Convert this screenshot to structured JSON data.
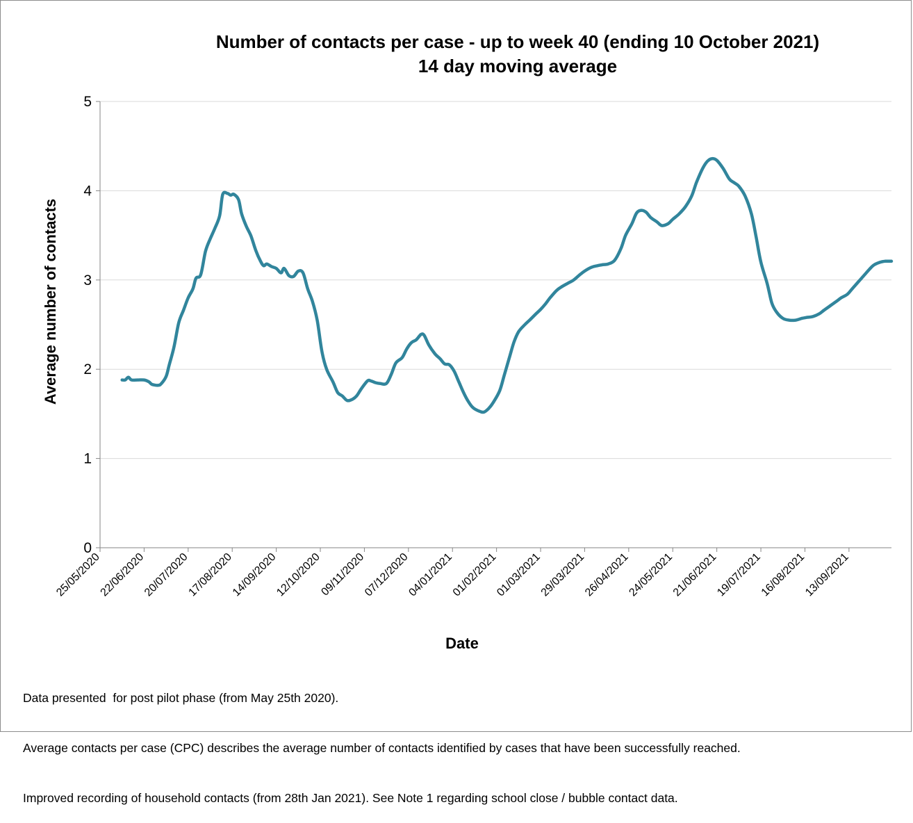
{
  "chart_data": {
    "type": "line",
    "title": "Number of contacts per case - up to week 40 (ending 10 October 2021)",
    "subtitle": "14 day moving average",
    "xlabel": "Date",
    "ylabel": "Average number of contacts",
    "x_range": [
      "2020-05-25",
      "2021-10-10"
    ],
    "ylim": [
      0,
      5
    ],
    "y_ticks": [
      0,
      1,
      2,
      3,
      4,
      5
    ],
    "x_tick_labels": [
      "25/05/2020",
      "22/06/2020",
      "20/07/2020",
      "17/08/2020",
      "14/09/2020",
      "12/10/2020",
      "09/11/2020",
      "07/12/2020",
      "04/01/2021",
      "01/02/2021",
      "01/03/2021",
      "29/03/2021",
      "26/04/2021",
      "24/05/2021",
      "21/06/2021",
      "19/07/2021",
      "16/08/2021",
      "13/09/2021"
    ],
    "grid": "horizontal",
    "line_color": "#31859c",
    "points": [
      {
        "x": "2020-06-08",
        "y": 1.88
      },
      {
        "x": "2020-06-10",
        "y": 1.88
      },
      {
        "x": "2020-06-12",
        "y": 1.91
      },
      {
        "x": "2020-06-14",
        "y": 1.88
      },
      {
        "x": "2020-06-18",
        "y": 1.88
      },
      {
        "x": "2020-06-22",
        "y": 1.88
      },
      {
        "x": "2020-06-25",
        "y": 1.86
      },
      {
        "x": "2020-06-27",
        "y": 1.83
      },
      {
        "x": "2020-07-01",
        "y": 1.82
      },
      {
        "x": "2020-07-03",
        "y": 1.84
      },
      {
        "x": "2020-07-06",
        "y": 1.92
      },
      {
        "x": "2020-07-08",
        "y": 2.05
      },
      {
        "x": "2020-07-11",
        "y": 2.25
      },
      {
        "x": "2020-07-14",
        "y": 2.52
      },
      {
        "x": "2020-07-17",
        "y": 2.66
      },
      {
        "x": "2020-07-20",
        "y": 2.8
      },
      {
        "x": "2020-07-23",
        "y": 2.9
      },
      {
        "x": "2020-07-25",
        "y": 3.02
      },
      {
        "x": "2020-07-28",
        "y": 3.06
      },
      {
        "x": "2020-07-31",
        "y": 3.32
      },
      {
        "x": "2020-08-03",
        "y": 3.46
      },
      {
        "x": "2020-08-06",
        "y": 3.58
      },
      {
        "x": "2020-08-09",
        "y": 3.72
      },
      {
        "x": "2020-08-11",
        "y": 3.96
      },
      {
        "x": "2020-08-14",
        "y": 3.97
      },
      {
        "x": "2020-08-16",
        "y": 3.95
      },
      {
        "x": "2020-08-18",
        "y": 3.96
      },
      {
        "x": "2020-08-21",
        "y": 3.9
      },
      {
        "x": "2020-08-23",
        "y": 3.74
      },
      {
        "x": "2020-08-26",
        "y": 3.6
      },
      {
        "x": "2020-08-29",
        "y": 3.49
      },
      {
        "x": "2020-09-01",
        "y": 3.33
      },
      {
        "x": "2020-09-04",
        "y": 3.21
      },
      {
        "x": "2020-09-06",
        "y": 3.16
      },
      {
        "x": "2020-09-08",
        "y": 3.18
      },
      {
        "x": "2020-09-11",
        "y": 3.15
      },
      {
        "x": "2020-09-14",
        "y": 3.13
      },
      {
        "x": "2020-09-17",
        "y": 3.08
      },
      {
        "x": "2020-09-19",
        "y": 3.13
      },
      {
        "x": "2020-09-22",
        "y": 3.05
      },
      {
        "x": "2020-09-25",
        "y": 3.04
      },
      {
        "x": "2020-09-28",
        "y": 3.1
      },
      {
        "x": "2020-10-01",
        "y": 3.08
      },
      {
        "x": "2020-10-04",
        "y": 2.9
      },
      {
        "x": "2020-10-07",
        "y": 2.76
      },
      {
        "x": "2020-10-10",
        "y": 2.55
      },
      {
        "x": "2020-10-13",
        "y": 2.2
      },
      {
        "x": "2020-10-16",
        "y": 2.0
      },
      {
        "x": "2020-10-20",
        "y": 1.86
      },
      {
        "x": "2020-10-23",
        "y": 1.74
      },
      {
        "x": "2020-10-26",
        "y": 1.7
      },
      {
        "x": "2020-10-29",
        "y": 1.65
      },
      {
        "x": "2020-11-01",
        "y": 1.66
      },
      {
        "x": "2020-11-04",
        "y": 1.7
      },
      {
        "x": "2020-11-07",
        "y": 1.78
      },
      {
        "x": "2020-11-11",
        "y": 1.87
      },
      {
        "x": "2020-11-13",
        "y": 1.87
      },
      {
        "x": "2020-11-16",
        "y": 1.85
      },
      {
        "x": "2020-11-19",
        "y": 1.84
      },
      {
        "x": "2020-11-23",
        "y": 1.84
      },
      {
        "x": "2020-11-26",
        "y": 1.94
      },
      {
        "x": "2020-11-29",
        "y": 2.07
      },
      {
        "x": "2020-12-03",
        "y": 2.13
      },
      {
        "x": "2020-12-06",
        "y": 2.23
      },
      {
        "x": "2020-12-09",
        "y": 2.3
      },
      {
        "x": "2020-12-12",
        "y": 2.33
      },
      {
        "x": "2020-12-15",
        "y": 2.39
      },
      {
        "x": "2020-12-17",
        "y": 2.38
      },
      {
        "x": "2020-12-20",
        "y": 2.27
      },
      {
        "x": "2020-12-24",
        "y": 2.17
      },
      {
        "x": "2020-12-27",
        "y": 2.12
      },
      {
        "x": "2020-12-30",
        "y": 2.06
      },
      {
        "x": "2021-01-02",
        "y": 2.05
      },
      {
        "x": "2021-01-05",
        "y": 1.98
      },
      {
        "x": "2021-01-08",
        "y": 1.86
      },
      {
        "x": "2021-01-11",
        "y": 1.74
      },
      {
        "x": "2021-01-14",
        "y": 1.64
      },
      {
        "x": "2021-01-17",
        "y": 1.57
      },
      {
        "x": "2021-01-21",
        "y": 1.53
      },
      {
        "x": "2021-01-24",
        "y": 1.52
      },
      {
        "x": "2021-01-27",
        "y": 1.56
      },
      {
        "x": "2021-01-30",
        "y": 1.63
      },
      {
        "x": "2021-02-03",
        "y": 1.76
      },
      {
        "x": "2021-02-06",
        "y": 1.94
      },
      {
        "x": "2021-02-09",
        "y": 2.12
      },
      {
        "x": "2021-02-12",
        "y": 2.3
      },
      {
        "x": "2021-02-15",
        "y": 2.42
      },
      {
        "x": "2021-02-19",
        "y": 2.5
      },
      {
        "x": "2021-02-22",
        "y": 2.55
      },
      {
        "x": "2021-02-26",
        "y": 2.62
      },
      {
        "x": "2021-03-01",
        "y": 2.67
      },
      {
        "x": "2021-03-04",
        "y": 2.73
      },
      {
        "x": "2021-03-07",
        "y": 2.8
      },
      {
        "x": "2021-03-11",
        "y": 2.88
      },
      {
        "x": "2021-03-14",
        "y": 2.92
      },
      {
        "x": "2021-03-18",
        "y": 2.96
      },
      {
        "x": "2021-03-22",
        "y": 3.0
      },
      {
        "x": "2021-03-26",
        "y": 3.06
      },
      {
        "x": "2021-03-29",
        "y": 3.1
      },
      {
        "x": "2021-04-02",
        "y": 3.14
      },
      {
        "x": "2021-04-06",
        "y": 3.16
      },
      {
        "x": "2021-04-09",
        "y": 3.17
      },
      {
        "x": "2021-04-13",
        "y": 3.18
      },
      {
        "x": "2021-04-17",
        "y": 3.22
      },
      {
        "x": "2021-04-21",
        "y": 3.35
      },
      {
        "x": "2021-04-24",
        "y": 3.5
      },
      {
        "x": "2021-04-28",
        "y": 3.63
      },
      {
        "x": "2021-05-01",
        "y": 3.75
      },
      {
        "x": "2021-05-04",
        "y": 3.78
      },
      {
        "x": "2021-05-07",
        "y": 3.76
      },
      {
        "x": "2021-05-10",
        "y": 3.7
      },
      {
        "x": "2021-05-14",
        "y": 3.65
      },
      {
        "x": "2021-05-17",
        "y": 3.61
      },
      {
        "x": "2021-05-21",
        "y": 3.63
      },
      {
        "x": "2021-05-24",
        "y": 3.68
      },
      {
        "x": "2021-05-28",
        "y": 3.74
      },
      {
        "x": "2021-06-01",
        "y": 3.82
      },
      {
        "x": "2021-06-05",
        "y": 3.94
      },
      {
        "x": "2021-06-08",
        "y": 4.09
      },
      {
        "x": "2021-06-12",
        "y": 4.25
      },
      {
        "x": "2021-06-15",
        "y": 4.33
      },
      {
        "x": "2021-06-18",
        "y": 4.36
      },
      {
        "x": "2021-06-21",
        "y": 4.34
      },
      {
        "x": "2021-06-25",
        "y": 4.25
      },
      {
        "x": "2021-06-29",
        "y": 4.13
      },
      {
        "x": "2021-07-02",
        "y": 4.09
      },
      {
        "x": "2021-07-05",
        "y": 4.05
      },
      {
        "x": "2021-07-09",
        "y": 3.94
      },
      {
        "x": "2021-07-13",
        "y": 3.74
      },
      {
        "x": "2021-07-16",
        "y": 3.48
      },
      {
        "x": "2021-07-19",
        "y": 3.2
      },
      {
        "x": "2021-07-23",
        "y": 2.96
      },
      {
        "x": "2021-07-26",
        "y": 2.74
      },
      {
        "x": "2021-07-29",
        "y": 2.64
      },
      {
        "x": "2021-08-02",
        "y": 2.57
      },
      {
        "x": "2021-08-06",
        "y": 2.55
      },
      {
        "x": "2021-08-10",
        "y": 2.55
      },
      {
        "x": "2021-08-14",
        "y": 2.57
      },
      {
        "x": "2021-08-17",
        "y": 2.58
      },
      {
        "x": "2021-08-21",
        "y": 2.59
      },
      {
        "x": "2021-08-25",
        "y": 2.62
      },
      {
        "x": "2021-08-28",
        "y": 2.66
      },
      {
        "x": "2021-09-01",
        "y": 2.71
      },
      {
        "x": "2021-09-05",
        "y": 2.76
      },
      {
        "x": "2021-09-08",
        "y": 2.8
      },
      {
        "x": "2021-09-12",
        "y": 2.84
      },
      {
        "x": "2021-09-15",
        "y": 2.9
      },
      {
        "x": "2021-09-19",
        "y": 2.98
      },
      {
        "x": "2021-09-22",
        "y": 3.04
      },
      {
        "x": "2021-09-26",
        "y": 3.12
      },
      {
        "x": "2021-09-29",
        "y": 3.17
      },
      {
        "x": "2021-10-03",
        "y": 3.2
      },
      {
        "x": "2021-10-06",
        "y": 3.21
      },
      {
        "x": "2021-10-10",
        "y": 3.21
      }
    ]
  },
  "notes": [
    "Data presented  for post pilot phase (from May 25th 2020).",
    "Average contacts per case (CPC) describes the average number of contacts identified by cases that have been successfully reached.",
    "Improved recording of household contacts (from 28th Jan 2021). See Note 1 regarding school close / bubble contact data."
  ]
}
